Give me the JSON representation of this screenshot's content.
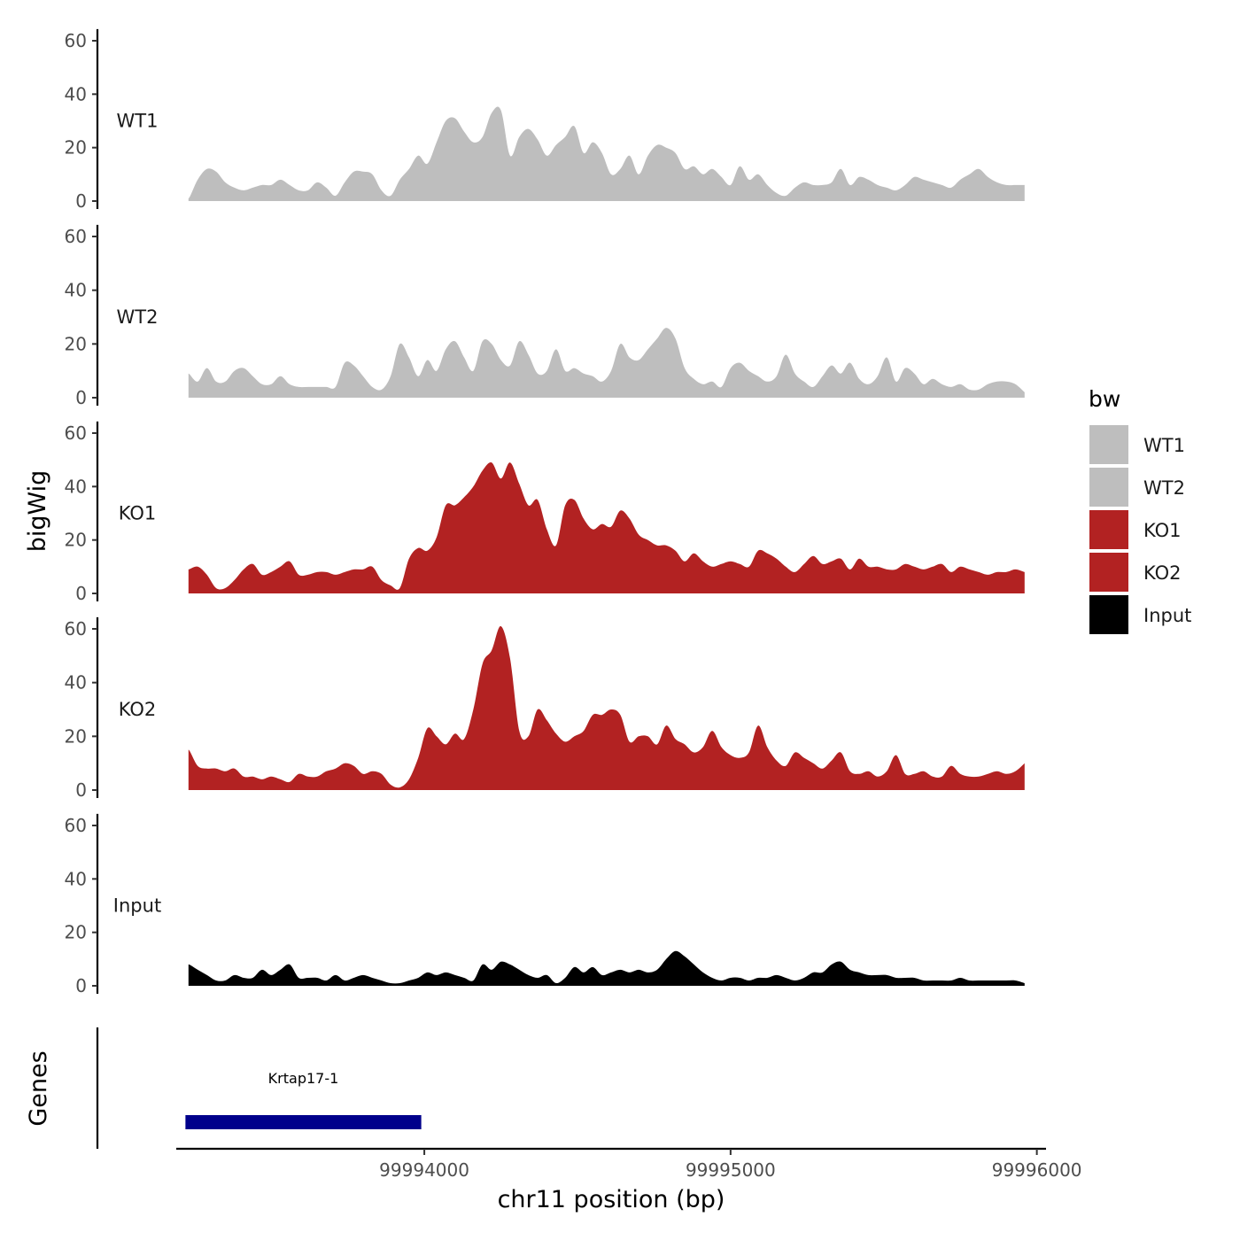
{
  "chart_data": {
    "type": "area",
    "xlabel": "chr11 position (bp)",
    "ylabel": "bigWig",
    "xlim": [
      99993190,
      99996030
    ],
    "x_ticks": [
      99994000,
      99995000,
      99996000
    ],
    "x_tick_labels": [
      "99994000",
      "99995000",
      "99996000"
    ],
    "ylim": [
      0,
      64
    ],
    "y_ticks": [
      0,
      20,
      40,
      60
    ],
    "y_tick_labels": [
      "0",
      "20",
      "40",
      "60"
    ],
    "grid": false,
    "legend": {
      "title": "bw",
      "position": "right",
      "entries": [
        {
          "label": "WT1",
          "color": "#bebebe"
        },
        {
          "label": "WT2",
          "color": "#bebebe"
        },
        {
          "label": "KO1",
          "color": "#b22222"
        },
        {
          "label": "KO2",
          "color": "#b22222"
        },
        {
          "label": "Input",
          "color": "#000000"
        }
      ]
    },
    "x": [
      99993230,
      99993260,
      99993290,
      99993320,
      99993350,
      99993380,
      99993410,
      99993440,
      99993470,
      99993500,
      99993530,
      99993560,
      99993590,
      99993620,
      99993650,
      99993680,
      99993710,
      99993740,
      99993770,
      99993800,
      99993830,
      99993860,
      99993890,
      99993920,
      99993950,
      99993980,
      99994010,
      99994040,
      99994070,
      99994100,
      99994130,
      99994160,
      99994190,
      99994220,
      99994250,
      99994280,
      99994310,
      99994340,
      99994370,
      99994400,
      99994430,
      99994460,
      99994490,
      99994520,
      99994550,
      99994580,
      99994610,
      99994640,
      99994670,
      99994700,
      99994730,
      99994760,
      99994790,
      99994820,
      99994850,
      99994880,
      99994910,
      99994940,
      99994970,
      99995000,
      99995030,
      99995060,
      99995090,
      99995120,
      99995150,
      99995180,
      99995210,
      99995240,
      99995270,
      99995300,
      99995330,
      99995360,
      99995390,
      99995420,
      99995450,
      99995480,
      99995510,
      99995540,
      99995570,
      99995600,
      99995630,
      99995660,
      99995690,
      99995720,
      99995750,
      99995780,
      99995810,
      99995840,
      99995870,
      99995900,
      99995930,
      99995960
    ],
    "series": [
      {
        "name": "WT1",
        "color": "#bebebe",
        "values": [
          1,
          8,
          12,
          11,
          7,
          5,
          4,
          5,
          6,
          6,
          8,
          6,
          4,
          4,
          7,
          5,
          2,
          7,
          11,
          11,
          10,
          4,
          2,
          8,
          12,
          17,
          14,
          22,
          30,
          31,
          26,
          22,
          24,
          33,
          34,
          17,
          24,
          27,
          23,
          17,
          21,
          24,
          28,
          18,
          22,
          18,
          10,
          12,
          17,
          10,
          17,
          21,
          20,
          18,
          12,
          13,
          10,
          12,
          9,
          6,
          13,
          8,
          10,
          6,
          3,
          2,
          5,
          7,
          6,
          6,
          7,
          12,
          6,
          9,
          8,
          6,
          5,
          4,
          6,
          9,
          8,
          7,
          6,
          5,
          8,
          10,
          12,
          9,
          7,
          6,
          6,
          6
        ]
      },
      {
        "name": "WT2",
        "color": "#bebebe",
        "values": [
          9,
          6,
          11,
          6,
          6,
          10,
          11,
          8,
          5,
          5,
          8,
          5,
          4,
          4,
          4,
          4,
          4,
          13,
          12,
          8,
          4,
          3,
          8,
          20,
          15,
          8,
          14,
          10,
          18,
          21,
          15,
          10,
          21,
          20,
          14,
          12,
          21,
          16,
          9,
          10,
          18,
          10,
          11,
          9,
          8,
          6,
          10,
          20,
          15,
          14,
          18,
          22,
          26,
          22,
          11,
          7,
          5,
          6,
          4,
          11,
          13,
          10,
          8,
          6,
          8,
          16,
          9,
          6,
          4,
          8,
          12,
          9,
          13,
          7,
          5,
          8,
          15,
          6,
          11,
          9,
          5,
          7,
          5,
          4,
          5,
          3,
          3,
          5,
          6,
          6,
          5,
          2
        ]
      },
      {
        "name": "KO1",
        "color": "#b22222",
        "values": [
          9,
          10,
          7,
          2,
          2,
          5,
          9,
          11,
          7,
          8,
          10,
          12,
          7,
          7,
          8,
          8,
          7,
          8,
          9,
          9,
          10,
          5,
          3,
          2,
          13,
          17,
          16,
          21,
          33,
          33,
          36,
          40,
          46,
          49,
          43,
          49,
          41,
          33,
          35,
          24,
          18,
          33,
          35,
          28,
          24,
          26,
          25,
          31,
          28,
          22,
          20,
          18,
          18,
          16,
          12,
          15,
          12,
          10,
          11,
          12,
          11,
          10,
          16,
          15,
          13,
          10,
          8,
          11,
          14,
          11,
          12,
          13,
          9,
          13,
          10,
          10,
          9,
          9,
          11,
          10,
          9,
          10,
          11,
          8,
          10,
          9,
          8,
          7,
          8,
          8,
          9,
          8
        ]
      },
      {
        "name": "KO2",
        "color": "#b22222",
        "values": [
          15,
          9,
          8,
          8,
          7,
          8,
          5,
          5,
          4,
          5,
          4,
          3,
          6,
          5,
          5,
          7,
          8,
          10,
          9,
          6,
          7,
          6,
          2,
          1,
          4,
          12,
          23,
          20,
          17,
          21,
          19,
          30,
          47,
          52,
          61,
          49,
          22,
          20,
          30,
          26,
          21,
          18,
          20,
          22,
          28,
          28,
          30,
          28,
          18,
          20,
          20,
          17,
          24,
          19,
          17,
          14,
          16,
          22,
          16,
          13,
          12,
          14,
          24,
          16,
          11,
          9,
          14,
          12,
          10,
          8,
          11,
          14,
          7,
          6,
          7,
          5,
          7,
          13,
          6,
          6,
          7,
          5,
          5,
          9,
          6,
          5,
          5,
          6,
          7,
          6,
          7,
          10
        ]
      },
      {
        "name": "Input",
        "color": "#000000",
        "values": [
          8,
          6,
          4,
          2,
          2,
          4,
          3,
          3,
          6,
          4,
          6,
          8,
          3,
          3,
          3,
          2,
          4,
          2,
          3,
          4,
          3,
          2,
          1,
          1,
          2,
          3,
          5,
          4,
          5,
          4,
          3,
          2,
          8,
          6,
          9,
          8,
          6,
          4,
          3,
          4,
          1,
          3,
          7,
          5,
          7,
          4,
          5,
          6,
          5,
          6,
          5,
          6,
          10,
          13,
          11,
          8,
          5,
          3,
          2,
          3,
          3,
          2,
          3,
          3,
          4,
          3,
          2,
          3,
          5,
          5,
          8,
          9,
          6,
          5,
          4,
          4,
          4,
          3,
          3,
          3,
          2,
          2,
          2,
          2,
          3,
          2,
          2,
          2,
          2,
          2,
          2,
          1
        ]
      }
    ],
    "genes_track": {
      "label": "Genes",
      "genes": [
        {
          "name": "Krtap17-1",
          "start": 99993220,
          "end": 99993990,
          "color": "#00008b"
        }
      ]
    }
  }
}
